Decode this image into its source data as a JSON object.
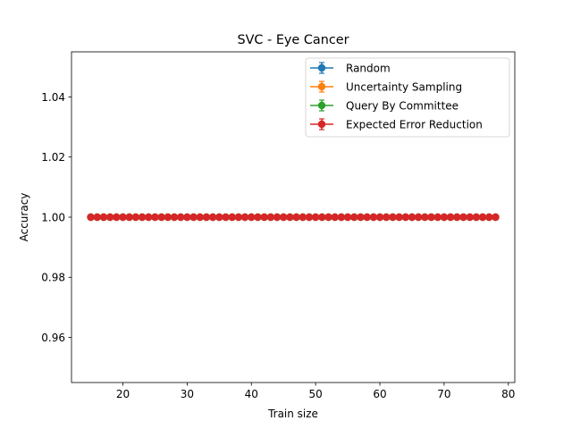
{
  "chart_data": {
    "type": "line",
    "title": "SVC - Eye Cancer",
    "xlabel": "Train size",
    "ylabel": "Accuracy",
    "xlim": [
      12.0,
      81.0
    ],
    "ylim": [
      0.945,
      1.055
    ],
    "xticks": [
      20,
      30,
      40,
      50,
      60,
      70,
      80
    ],
    "yticks": [
      0.96,
      0.98,
      1.0,
      1.02,
      1.04
    ],
    "ytick_labels": [
      "0.96",
      "0.98",
      "1.00",
      "1.02",
      "1.04"
    ],
    "x": [
      15,
      16,
      17,
      18,
      19,
      20,
      21,
      22,
      23,
      24,
      25,
      26,
      27,
      28,
      29,
      30,
      31,
      32,
      33,
      34,
      35,
      36,
      37,
      38,
      39,
      40,
      41,
      42,
      43,
      44,
      45,
      46,
      47,
      48,
      49,
      50,
      51,
      52,
      53,
      54,
      55,
      56,
      57,
      58,
      59,
      60,
      61,
      62,
      63,
      64,
      65,
      66,
      67,
      68,
      69,
      70,
      71,
      72,
      73,
      74,
      75,
      76,
      77,
      78
    ],
    "grid": false,
    "legend_position": "top-right",
    "series": [
      {
        "name": "Random",
        "color": "#1f77b4",
        "y_const": 1.0
      },
      {
        "name": "Uncertainty Sampling",
        "color": "#ff7f0e",
        "y_const": 1.0
      },
      {
        "name": "Query By Committee",
        "color": "#2ca02c",
        "y_const": 1.0
      },
      {
        "name": "Expected Error Reduction",
        "color": "#d62728",
        "y_const": 1.0
      }
    ]
  }
}
